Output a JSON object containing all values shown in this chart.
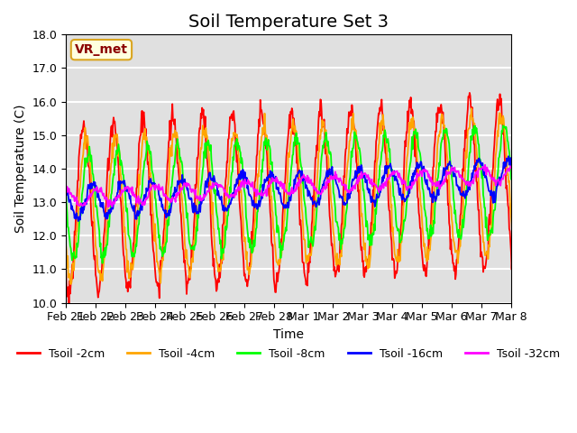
{
  "title": "Soil Temperature Set 3",
  "xlabel": "Time",
  "ylabel": "Soil Temperature (C)",
  "ylim": [
    10.0,
    18.0
  ],
  "yticks": [
    10.0,
    11.0,
    12.0,
    13.0,
    14.0,
    15.0,
    16.0,
    17.0,
    18.0
  ],
  "xtick_labels": [
    "Feb 21",
    "Feb 22",
    "Feb 23",
    "Feb 24",
    "Feb 25",
    "Feb 26",
    "Feb 27",
    "Feb 28",
    "Mar 1",
    "Mar 2",
    "Mar 3",
    "Mar 4",
    "Mar 5",
    "Mar 6",
    "Mar 7",
    "Mar 8"
  ],
  "legend_labels": [
    "Tsoil -2cm",
    "Tsoil -4cm",
    "Tsoil -8cm",
    "Tsoil -16cm",
    "Tsoil -32cm"
  ],
  "line_colors": [
    "red",
    "orange",
    "lime",
    "blue",
    "magenta"
  ],
  "annotation_text": "VR_met",
  "annotation_color": "darkred",
  "annotation_bg": "lightyellow",
  "bg_color": "#e0e0e0",
  "grid_color": "white",
  "title_fontsize": 14,
  "label_fontsize": 10,
  "tick_fontsize": 9
}
